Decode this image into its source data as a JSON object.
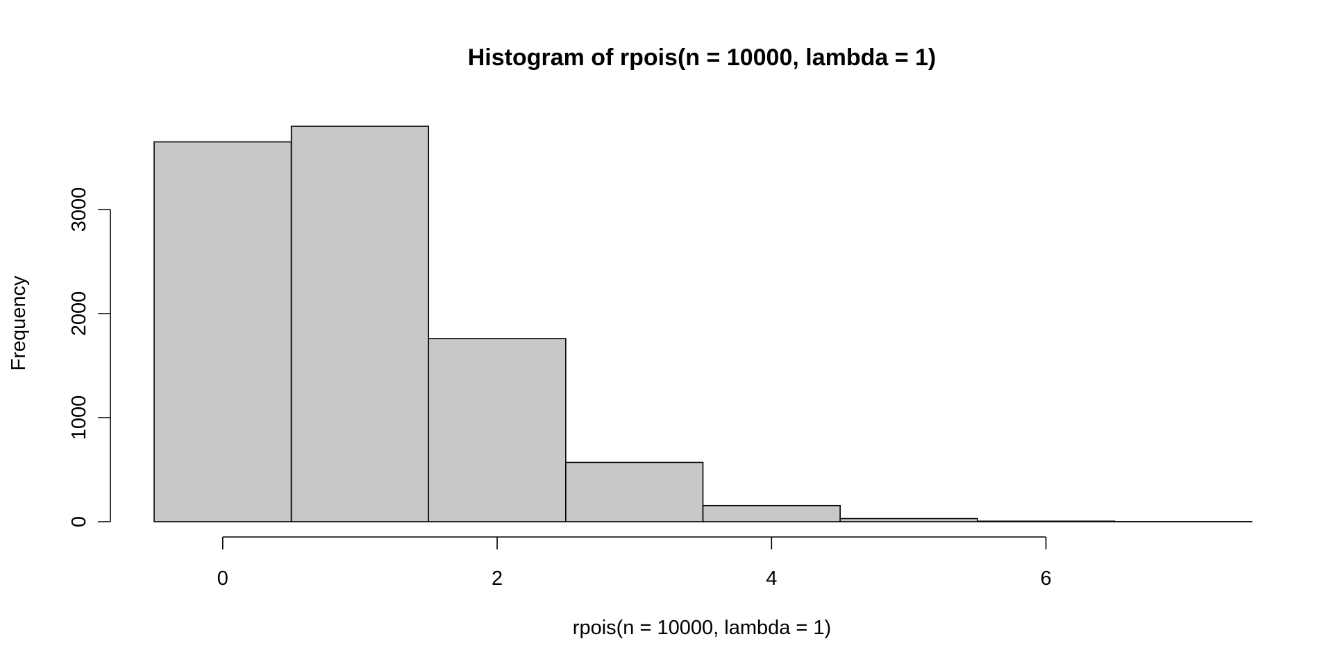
{
  "chart_data": {
    "type": "bar",
    "title": "Histogram of rpois(n = 10000, lambda = 1)",
    "xlabel": "rpois(n = 10000, lambda = 1)",
    "ylabel": "Frequency",
    "bins": [
      {
        "x0": -0.5,
        "x1": 0.5,
        "count": 3650
      },
      {
        "x0": 0.5,
        "x1": 1.5,
        "count": 3800
      },
      {
        "x0": 1.5,
        "x1": 2.5,
        "count": 1760
      },
      {
        "x0": 2.5,
        "x1": 3.5,
        "count": 570
      },
      {
        "x0": 3.5,
        "x1": 4.5,
        "count": 155
      },
      {
        "x0": 4.5,
        "x1": 5.5,
        "count": 30
      },
      {
        "x0": 5.5,
        "x1": 6.5,
        "count": 5
      },
      {
        "x0": 6.5,
        "x1": 7.5,
        "count": 1
      }
    ],
    "xlim": [
      -0.5,
      7.5
    ],
    "ylim": [
      0,
      3800
    ],
    "xticks": [
      0,
      2,
      4,
      6
    ],
    "yticks": [
      0,
      1000,
      2000,
      3000
    ],
    "bar_fill": "#c8c8c8",
    "bar_stroke": "#000000",
    "grid": false,
    "legend": "none"
  }
}
